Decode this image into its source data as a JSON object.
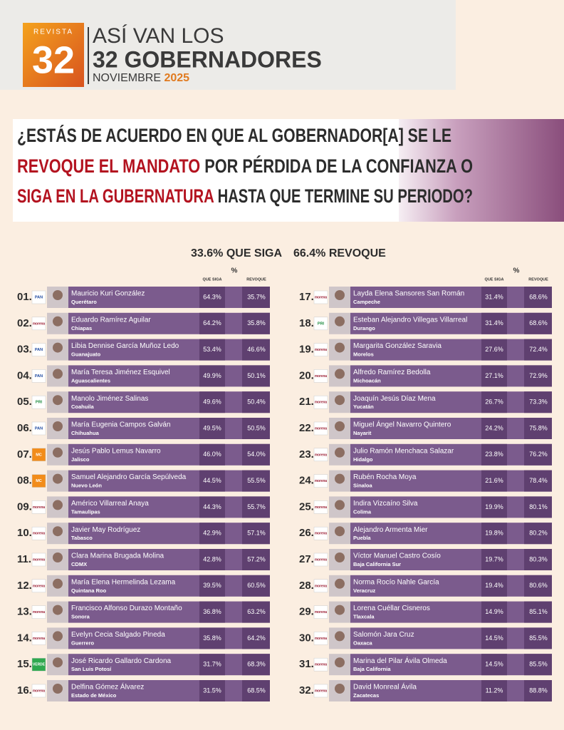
{
  "header": {
    "magazine": "REVISTA",
    "number": "32",
    "title_line1": "ASÍ VAN LOS",
    "title_line2": "32 GOBERNADORES",
    "month": "NOVIEMBRE",
    "year": "2025"
  },
  "question": {
    "line1": "¿ESTÁS DE ACUERDO EN QUE AL GOBERNADOR[A] SE LE",
    "line2_red": "REVOQUE EL MANDATO",
    "line2_rest": " POR PÉRDIDA DE LA CONFIANZA O",
    "line3_red": "SIGA EN LA GUBERNATURA",
    "line3_rest": " HASTA QUE TERMINE SU PERIODO?"
  },
  "summary": {
    "siga": "33.6% QUE SIGA",
    "revoque": "66.4% REVOQUE"
  },
  "table": {
    "headers": {
      "siga": "QUE SIGA",
      "percent": "%",
      "revoque": "REVOQUE"
    },
    "rows": [
      {
        "rank": "01.",
        "party": "PAN",
        "name": "Mauricio Kuri González",
        "state": "Querétaro",
        "siga": "64.3%",
        "revoque": "35.7%"
      },
      {
        "rank": "02.",
        "party": "morena",
        "name": "Eduardo Ramírez Aguilar",
        "state": "Chiapas",
        "siga": "64.2%",
        "revoque": "35.8%"
      },
      {
        "rank": "03.",
        "party": "PAN",
        "name": "Libia Dennise García Muñoz Ledo",
        "state": "Guanajuato",
        "siga": "53.4%",
        "revoque": "46.6%"
      },
      {
        "rank": "04.",
        "party": "PAN",
        "name": "María Teresa Jiménez Esquivel",
        "state": "Aguascalientes",
        "siga": "49.9%",
        "revoque": "50.1%"
      },
      {
        "rank": "05.",
        "party": "PRI",
        "name": "Manolo Jiménez Salinas",
        "state": "Coahuila",
        "siga": "49.6%",
        "revoque": "50.4%"
      },
      {
        "rank": "06.",
        "party": "PAN",
        "name": "María Eugenia Campos Galván",
        "state": "Chihuahua",
        "siga": "49.5%",
        "revoque": "50.5%"
      },
      {
        "rank": "07.",
        "party": "MC",
        "name": "Jesús Pablo Lemus Navarro",
        "state": "Jalisco",
        "siga": "46.0%",
        "revoque": "54.0%"
      },
      {
        "rank": "08.",
        "party": "MC",
        "name": "Samuel Alejandro García Sepúlveda",
        "state": "Nuevo León",
        "siga": "44.5%",
        "revoque": "55.5%"
      },
      {
        "rank": "09.",
        "party": "morena",
        "name": "Américo Villarreal Anaya",
        "state": "Tamaulipas",
        "siga": "44.3%",
        "revoque": "55.7%"
      },
      {
        "rank": "10.",
        "party": "morena",
        "name": "Javier May Rodríguez",
        "state": "Tabasco",
        "siga": "42.9%",
        "revoque": "57.1%"
      },
      {
        "rank": "11.",
        "party": "morena",
        "name": "Clara Marina Brugada Molina",
        "state": "CDMX",
        "siga": "42.8%",
        "revoque": "57.2%"
      },
      {
        "rank": "12.",
        "party": "morena",
        "name": "María Elena Hermelinda Lezama",
        "state": "Quintana Roo",
        "siga": "39.5%",
        "revoque": "60.5%"
      },
      {
        "rank": "13.",
        "party": "morena",
        "name": "Francisco Alfonso Durazo Montaño",
        "state": "Sonora",
        "siga": "36.8%",
        "revoque": "63.2%"
      },
      {
        "rank": "14.",
        "party": "morena",
        "name": "Evelyn Cecia Salgado Pineda",
        "state": "Guerrero",
        "siga": "35.8%",
        "revoque": "64.2%"
      },
      {
        "rank": "15.",
        "party": "VERDE",
        "name": "José Ricardo Gallardo Cardona",
        "state": "San Luis Potosí",
        "siga": "31.7%",
        "revoque": "68.3%"
      },
      {
        "rank": "16.",
        "party": "morena",
        "name": "Delfina Gómez Álvarez",
        "state": "Estado de México",
        "siga": "31.5%",
        "revoque": "68.5%"
      },
      {
        "rank": "17.",
        "party": "morena",
        "name": "Layda Elena Sansores San Román",
        "state": "Campeche",
        "siga": "31.4%",
        "revoque": "68.6%"
      },
      {
        "rank": "18.",
        "party": "PRI",
        "name": "Esteban Alejandro Villegas Villarreal",
        "state": "Durango",
        "siga": "31.4%",
        "revoque": "68.6%"
      },
      {
        "rank": "19.",
        "party": "morena",
        "name": "Margarita González Saravia",
        "state": "Morelos",
        "siga": "27.6%",
        "revoque": "72.4%"
      },
      {
        "rank": "20.",
        "party": "morena",
        "name": "Alfredo Ramírez Bedolla",
        "state": "Michoacán",
        "siga": "27.1%",
        "revoque": "72.9%"
      },
      {
        "rank": "21.",
        "party": "morena",
        "name": "Joaquín Jesús Díaz Mena",
        "state": "Yucatán",
        "siga": "26.7%",
        "revoque": "73.3%"
      },
      {
        "rank": "22.",
        "party": "morena",
        "name": "Miguel Ángel Navarro Quintero",
        "state": "Nayarit",
        "siga": "24.2%",
        "revoque": "75.8%"
      },
      {
        "rank": "23.",
        "party": "morena",
        "name": "Julio Ramón Menchaca Salazar",
        "state": "Hidalgo",
        "siga": "23.8%",
        "revoque": "76.2%"
      },
      {
        "rank": "24.",
        "party": "morena",
        "name": "Rubén Rocha Moya",
        "state": "Sinaloa",
        "siga": "21.6%",
        "revoque": "78.4%"
      },
      {
        "rank": "25.",
        "party": "morena",
        "name": "Indira Vizcaíno Silva",
        "state": "Colima",
        "siga": "19.9%",
        "revoque": "80.1%"
      },
      {
        "rank": "26.",
        "party": "morena",
        "name": "Alejandro Armenta Mier",
        "state": "Puebla",
        "siga": "19.8%",
        "revoque": "80.2%"
      },
      {
        "rank": "27.",
        "party": "morena",
        "name": "Víctor Manuel Castro Cosío",
        "state": "Baja California Sur",
        "siga": "19.7%",
        "revoque": "80.3%"
      },
      {
        "rank": "28.",
        "party": "morena",
        "name": "Norma Rocío Nahle García",
        "state": "Veracruz",
        "siga": "19.4%",
        "revoque": "80.6%"
      },
      {
        "rank": "29.",
        "party": "morena",
        "name": "Lorena Cuéllar Cisneros",
        "state": "Tlaxcala",
        "siga": "14.9%",
        "revoque": "85.1%"
      },
      {
        "rank": "30.",
        "party": "morena",
        "name": "Salomón Jara Cruz",
        "state": "Oaxaca",
        "siga": "14.5%",
        "revoque": "85.5%"
      },
      {
        "rank": "31.",
        "party": "morena",
        "name": "Marina del Pilar Ávila Olmeda",
        "state": "Baja California",
        "siga": "14.5%",
        "revoque": "85.5%"
      },
      {
        "rank": "32.",
        "party": "morena",
        "name": "David Monreal Ávila",
        "state": "Zacatecas",
        "siga": "11.2%",
        "revoque": "88.8%"
      }
    ]
  }
}
